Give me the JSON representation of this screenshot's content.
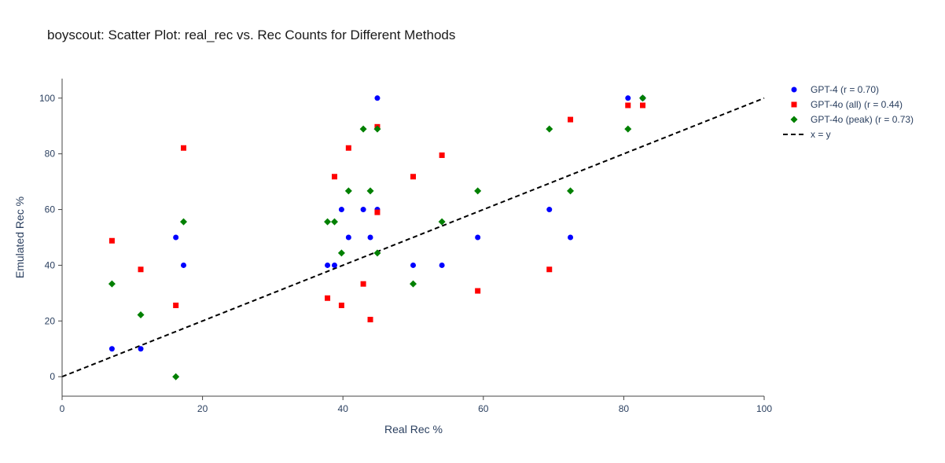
{
  "chart_data": {
    "type": "scatter",
    "title": "boyscout: Scatter Plot: real_rec vs. Rec Counts for Different Methods",
    "xlabel": "Real Rec %",
    "ylabel": "Emulated Rec %",
    "xlim": [
      0,
      100
    ],
    "ylim": [
      -7,
      107
    ],
    "xticks": [
      "0",
      "20",
      "40",
      "60",
      "80",
      "100"
    ],
    "yticks": [
      "0",
      "20",
      "40",
      "60",
      "80",
      "100"
    ],
    "grid": false,
    "legend_position": "top-right",
    "series": [
      {
        "name": "GPT-4 (r = 0.70)",
        "marker": "circle",
        "color": "#0000ff",
        "points": [
          [
            7.1,
            10
          ],
          [
            11.2,
            10
          ],
          [
            16.2,
            50
          ],
          [
            17.3,
            40
          ],
          [
            37.8,
            40
          ],
          [
            38.8,
            40
          ],
          [
            39.8,
            60
          ],
          [
            40.8,
            50
          ],
          [
            42.9,
            60
          ],
          [
            43.9,
            50
          ],
          [
            44.9,
            60
          ],
          [
            44.9,
            100
          ],
          [
            50.0,
            40
          ],
          [
            54.1,
            40
          ],
          [
            59.2,
            50
          ],
          [
            69.4,
            60
          ],
          [
            72.4,
            50
          ],
          [
            80.6,
            100
          ],
          [
            82.7,
            100
          ]
        ]
      },
      {
        "name": "GPT-4o (all) (r = 0.44)",
        "marker": "square",
        "color": "#ff0000",
        "points": [
          [
            7.1,
            48.8
          ],
          [
            11.2,
            38.5
          ],
          [
            16.2,
            25.6
          ],
          [
            17.3,
            82.1
          ],
          [
            37.8,
            28.2
          ],
          [
            38.8,
            71.8
          ],
          [
            39.8,
            25.6
          ],
          [
            40.8,
            82.1
          ],
          [
            42.9,
            33.3
          ],
          [
            43.9,
            20.5
          ],
          [
            44.9,
            59.0
          ],
          [
            44.9,
            89.7
          ],
          [
            50.0,
            71.8
          ],
          [
            54.1,
            79.5
          ],
          [
            59.2,
            30.8
          ],
          [
            69.4,
            38.5
          ],
          [
            72.4,
            92.3
          ],
          [
            80.6,
            97.4
          ],
          [
            82.7,
            97.4
          ]
        ]
      },
      {
        "name": "GPT-4o (peak) (r = 0.73)",
        "marker": "diamond",
        "color": "#008000",
        "points": [
          [
            7.1,
            33.3
          ],
          [
            11.2,
            22.2
          ],
          [
            16.2,
            0
          ],
          [
            17.3,
            55.6
          ],
          [
            37.8,
            55.6
          ],
          [
            38.8,
            55.6
          ],
          [
            39.8,
            44.4
          ],
          [
            40.8,
            66.7
          ],
          [
            42.9,
            88.9
          ],
          [
            43.9,
            66.7
          ],
          [
            44.9,
            44.4
          ],
          [
            44.9,
            88.9
          ],
          [
            50.0,
            33.3
          ],
          [
            54.1,
            55.6
          ],
          [
            59.2,
            66.7
          ],
          [
            69.4,
            88.9
          ],
          [
            72.4,
            66.7
          ],
          [
            80.6,
            88.9
          ],
          [
            82.7,
            100
          ]
        ]
      }
    ],
    "reference_line": {
      "name": "x = y",
      "color": "#000000",
      "style": "dashed",
      "points": [
        [
          0,
          0
        ],
        [
          100,
          100
        ]
      ]
    }
  }
}
